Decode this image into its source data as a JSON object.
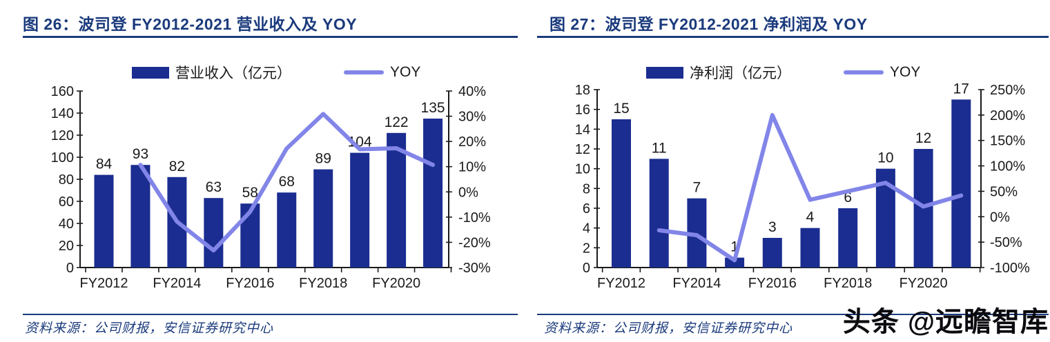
{
  "watermark": "头条 @远瞻智库",
  "colors": {
    "bar": "#1B2D90",
    "line": "#8285E8",
    "navy": "#1A3A7C",
    "axis": "#1a1a1a",
    "text": "#1a1a1a"
  },
  "figures": [
    {
      "title": "图 26：波司登 FY2012-2021 营业收入及 YOY",
      "source": "资料来源：公司财报，安信证券研究中心"
    },
    {
      "title": "图 27：波司登 FY2012-2021 净利润及 YOY",
      "source": "资料来源：公司财报，安信证券研究中心"
    }
  ],
  "chart_data": [
    {
      "type": "bar+line",
      "title": "波司登 FY2012-2021 营业收入及 YOY",
      "categories": [
        "FY2012",
        "FY2013",
        "FY2014",
        "FY2015",
        "FY2016",
        "FY2017",
        "FY2018",
        "FY2019",
        "FY2020",
        "FY2021"
      ],
      "x_tick_labels_shown": [
        "FY2012",
        "FY2014",
        "FY2016",
        "FY2018",
        "FY2020"
      ],
      "bar_series": {
        "name": "营业收入（亿元）",
        "axis": "left",
        "values": [
          84,
          93,
          82,
          63,
          58,
          68,
          89,
          104,
          122,
          135
        ]
      },
      "line_series": {
        "name": "YOY",
        "axis": "right",
        "unit": "%",
        "values": [
          null,
          10.7,
          -11.8,
          -23.2,
          -7.9,
          17.2,
          30.9,
          16.9,
          17.3,
          10.7
        ]
      },
      "left_axis": {
        "min": 0,
        "max": 160,
        "step": 20,
        "tick_labels": [
          "0",
          "20",
          "40",
          "60",
          "80",
          "100",
          "120",
          "140",
          "160"
        ]
      },
      "right_axis": {
        "min": -30,
        "max": 40,
        "step": 10,
        "tick_labels": [
          "-30%",
          "-20%",
          "-10%",
          "0%",
          "10%",
          "20%",
          "30%",
          "40%"
        ]
      },
      "legend_position": "top",
      "grid": false
    },
    {
      "type": "bar+line",
      "title": "波司登 FY2012-2021 净利润及 YOY",
      "categories": [
        "FY2012",
        "FY2013",
        "FY2014",
        "FY2015",
        "FY2016",
        "FY2017",
        "FY2018",
        "FY2019",
        "FY2020",
        "FY2021"
      ],
      "x_tick_labels_shown": [
        "FY2012",
        "FY2014",
        "FY2016",
        "FY2018",
        "FY2020"
      ],
      "bar_series": {
        "name": "净利润（亿元）",
        "axis": "left",
        "values": [
          15,
          11,
          7,
          1,
          3,
          4,
          6,
          10,
          12,
          17
        ]
      },
      "line_series": {
        "name": "YOY",
        "axis": "right",
        "unit": "%",
        "values": [
          null,
          -26.7,
          -36.4,
          -85.7,
          200,
          33.3,
          50,
          66.7,
          20,
          41.7
        ]
      },
      "left_axis": {
        "min": 0,
        "max": 18,
        "step": 2,
        "tick_labels": [
          "0",
          "2",
          "4",
          "6",
          "8",
          "10",
          "12",
          "14",
          "16",
          "18"
        ]
      },
      "right_axis": {
        "min": -100,
        "max": 250,
        "step": 50,
        "tick_labels": [
          "-100%",
          "-50%",
          "0%",
          "50%",
          "100%",
          "150%",
          "200%",
          "250%"
        ]
      },
      "legend_position": "top",
      "grid": false
    }
  ]
}
